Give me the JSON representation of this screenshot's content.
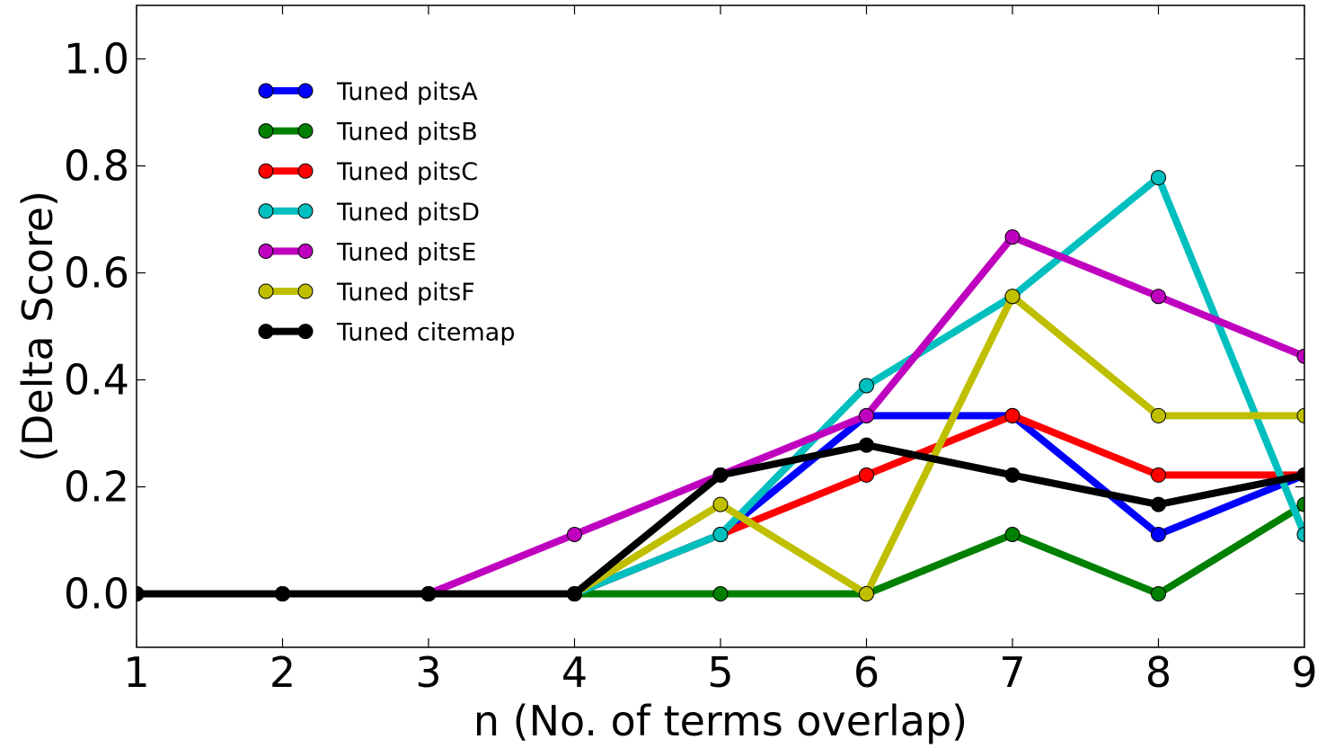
{
  "chart_data": {
    "type": "line",
    "title": "",
    "xlabel": "n (No. of terms overlap)",
    "ylabel": "(Delta Score)",
    "xlim": [
      1,
      9
    ],
    "ylim": [
      -0.1,
      1.1
    ],
    "x": [
      1,
      2,
      3,
      4,
      5,
      6,
      7,
      8,
      9
    ],
    "x_ticks": [
      "1",
      "2",
      "3",
      "4",
      "5",
      "6",
      "7",
      "8",
      "9"
    ],
    "y_ticks": [
      "0.0",
      "0.2",
      "0.4",
      "0.6",
      "0.8",
      "1.0"
    ],
    "y_tick_values": [
      0.0,
      0.2,
      0.4,
      0.6,
      0.8,
      1.0
    ],
    "grid": false,
    "legend_position": "upper-left",
    "series": [
      {
        "name": "Tuned pitsA",
        "color": "#0000ff",
        "values": [
          0,
          0,
          0,
          0,
          0.111,
          0.333,
          0.333,
          0.111,
          0.222
        ]
      },
      {
        "name": "Tuned pitsB",
        "color": "#008000",
        "values": [
          0,
          0,
          0,
          0,
          0,
          0,
          0.111,
          0,
          0.167
        ]
      },
      {
        "name": "Tuned pitsC",
        "color": "#ff0000",
        "values": [
          0,
          0,
          0,
          0,
          0.111,
          0.222,
          0.333,
          0.222,
          0.222
        ]
      },
      {
        "name": "Tuned pitsD",
        "color": "#00bfbf",
        "values": [
          0,
          0,
          0,
          0,
          0.111,
          0.389,
          0.556,
          0.778,
          0.111
        ]
      },
      {
        "name": "Tuned pitsE",
        "color": "#bf00bf",
        "values": [
          0,
          0,
          0,
          0.111,
          0.222,
          0.333,
          0.667,
          0.556,
          0.444
        ]
      },
      {
        "name": "Tuned pitsF",
        "color": "#bfbf00",
        "values": [
          0,
          0,
          0,
          0,
          0.167,
          0,
          0.556,
          0.333,
          0.333
        ]
      },
      {
        "name": "Tuned citemap",
        "color": "#000000",
        "values": [
          0,
          0,
          0,
          0,
          0.222,
          0.278,
          0.222,
          0.167,
          0.222
        ]
      }
    ]
  }
}
